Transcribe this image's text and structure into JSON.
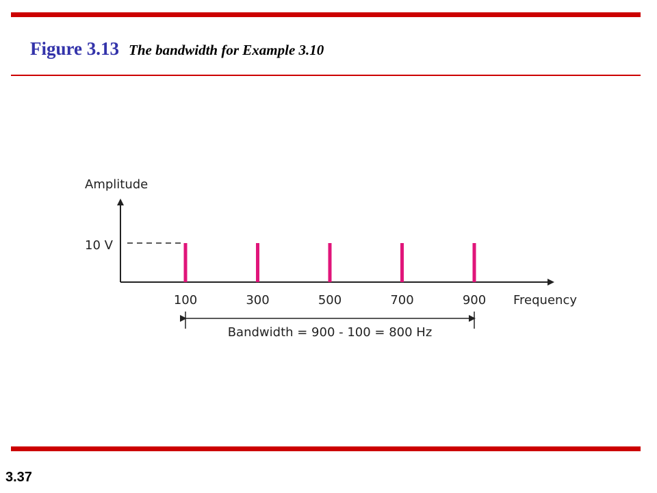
{
  "header": {
    "figure_number": "Figure 3.13",
    "figure_caption": "The bandwidth for Example 3.10"
  },
  "footer": {
    "slide_number": "3.37"
  },
  "colors": {
    "rule": "#cc0000",
    "spike": "#e0157a",
    "axis": "#222222",
    "figure_number": "#3333aa"
  },
  "chart_data": {
    "type": "bar",
    "xlabel": "Frequency",
    "ylabel": "Amplitude",
    "x": [
      100,
      300,
      500,
      700,
      900
    ],
    "x_tick_labels": [
      "100",
      "300",
      "500",
      "700",
      "900"
    ],
    "values": [
      10,
      10,
      10,
      10,
      10
    ],
    "y_tick_labels": [
      "10 V"
    ],
    "annotation": "Bandwidth = 900 - 100 = 800 Hz",
    "grid": false
  }
}
